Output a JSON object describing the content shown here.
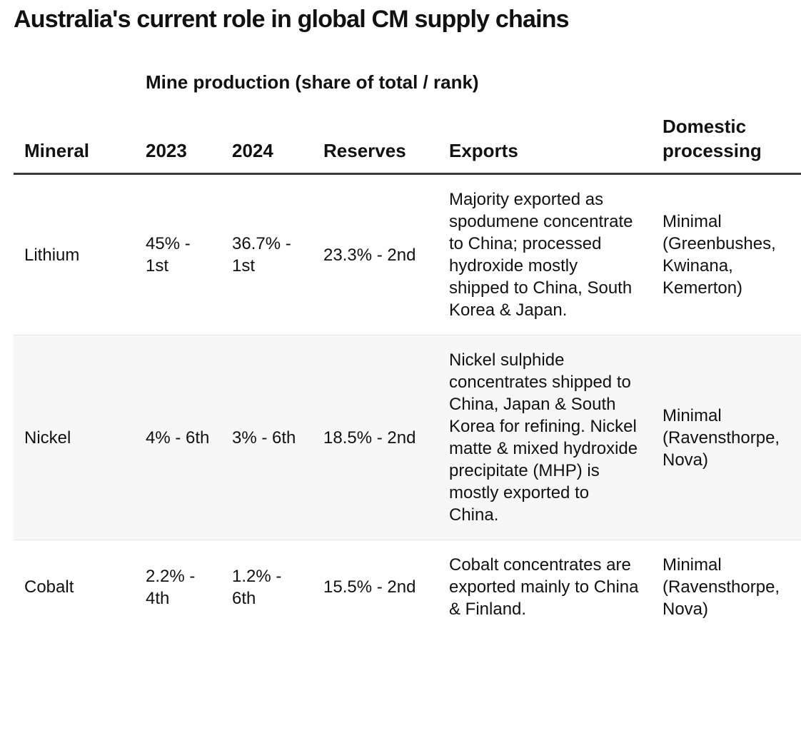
{
  "chart_data": {
    "type": "table",
    "title": "Australia's current role in global CM supply chains",
    "group_header": "Mine production (share of total / rank)",
    "columns": [
      "Mineral",
      "2023",
      "2024",
      "Reserves",
      "Exports",
      "Domestic processing"
    ],
    "rows": [
      {
        "mineral": "Lithium",
        "y2023": "45% - 1st",
        "y2024": "36.7% - 1st",
        "reserves": "23.3% - 2nd",
        "exports": "Majority exported as spodumene concentrate to China; processed hydroxide mostly shipped to China, South Korea & Japan.",
        "domestic": "Minimal (Greenbushes, Kwinana, Kemerton)"
      },
      {
        "mineral": "Nickel",
        "y2023": "4% - 6th",
        "y2024": "3% - 6th",
        "reserves": "18.5% - 2nd",
        "exports": "Nickel sulphide concentrates shipped to China, Japan & South Korea for refining. Nickel matte & mixed hydroxide precipitate (MHP) is mostly exported to China.",
        "domestic": "Minimal (Ravensthorpe, Nova)"
      },
      {
        "mineral": "Cobalt",
        "y2023": "2.2% - 4th",
        "y2024": "1.2% - 6th",
        "reserves": "15.5% - 2nd",
        "exports": "Cobalt concentrates are exported mainly to China & Finland.",
        "domestic": "Minimal (Ravensthorpe, Nova)"
      }
    ]
  }
}
